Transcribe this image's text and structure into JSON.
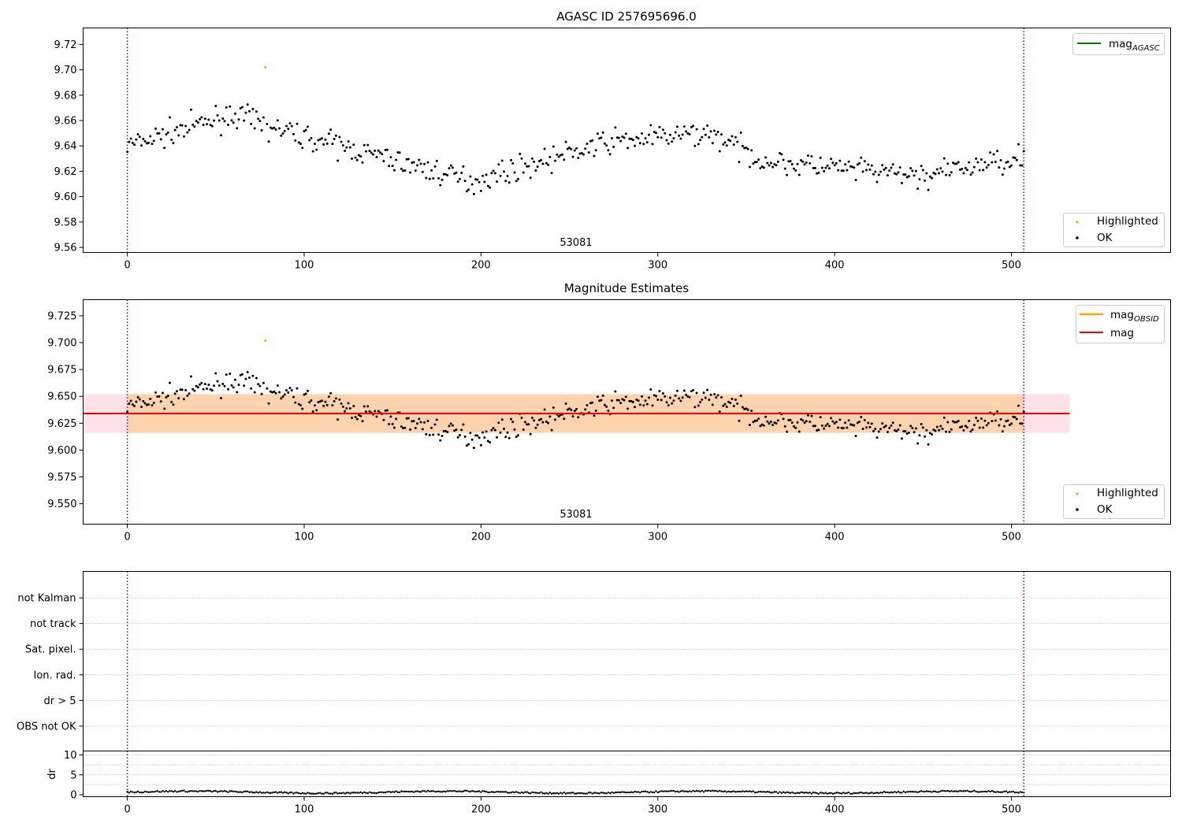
{
  "chart_data": [
    {
      "type": "scatter",
      "title": "AGASC ID 257695696.0",
      "xlim": [
        -25,
        590
      ],
      "ylim": [
        9.556,
        9.733
      ],
      "xticks": [
        0,
        100,
        200,
        300,
        400,
        500
      ],
      "yticks": [
        9.56,
        9.58,
        9.6,
        9.62,
        9.64,
        9.66,
        9.68,
        9.7,
        9.72
      ],
      "ytick_decimals": 2,
      "vlines": [
        0,
        507
      ],
      "obsid_label": "53081",
      "obsid_x": 253,
      "grid": false,
      "legend_lines": [
        {
          "label": "mag",
          "sub": "AGASC",
          "color": "#008000"
        }
      ],
      "legend_points": [
        {
          "label": "Highlighted",
          "color": "#ffa500"
        },
        {
          "label": "OK",
          "color": "#000000"
        }
      ],
      "highlighted": [
        {
          "x": 78,
          "y": 9.702
        }
      ]
    },
    {
      "type": "scatter",
      "title": "Magnitude Estimates",
      "xlim": [
        -25,
        590
      ],
      "ylim": [
        9.531,
        9.74
      ],
      "xticks": [
        0,
        100,
        200,
        300,
        400,
        500
      ],
      "yticks": [
        9.55,
        9.575,
        9.6,
        9.625,
        9.65,
        9.675,
        9.7,
        9.725
      ],
      "ytick_decimals": 3,
      "vlines": [
        0,
        507
      ],
      "obsid_label": "53081",
      "obsid_x": 253,
      "mean_mag": 9.634,
      "band_outer": [
        9.616,
        9.652
      ],
      "band_inner": [
        9.616,
        9.652
      ],
      "band_x": [
        -25,
        533
      ],
      "band_inner_x": [
        0,
        507
      ],
      "legend_lines": [
        {
          "label": "mag",
          "sub": "OBSID",
          "color": "#ffa500"
        },
        {
          "label": "mag",
          "sub": "",
          "color": "#ff0000"
        }
      ],
      "legend_points": [
        {
          "label": "Highlighted",
          "color": "#ffa500"
        },
        {
          "label": "OK",
          "color": "#000000"
        }
      ],
      "highlighted": [
        {
          "x": 78,
          "y": 9.702
        }
      ]
    },
    {
      "type": "scatter",
      "title": "",
      "flag_categories": [
        "OBS not OK",
        "dr > 5",
        "Ion. rad.",
        "Sat. pixel.",
        "not track",
        "not Kalman"
      ],
      "flags_set": []
    },
    {
      "type": "scatter",
      "ylabel": "dr",
      "xlim": [
        -25,
        590
      ],
      "ylim": [
        -0.5,
        11
      ],
      "xticks": [
        0,
        100,
        200,
        300,
        400,
        500
      ],
      "yticks": [
        0,
        5,
        10
      ],
      "vlines": [
        0,
        507
      ]
    }
  ]
}
